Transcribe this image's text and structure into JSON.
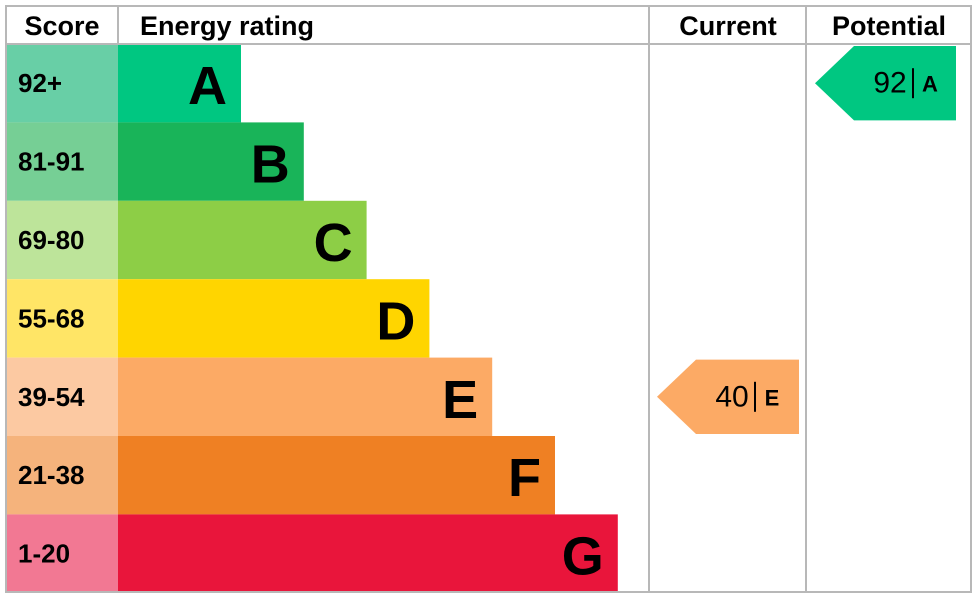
{
  "header": {
    "score": "Score",
    "rating": "Energy rating",
    "current": "Current",
    "potential": "Potential"
  },
  "bands": [
    {
      "score": "92+",
      "letter": "A",
      "color": "#00c781",
      "light": "#68cfa6"
    },
    {
      "score": "81-91",
      "letter": "B",
      "color": "#19b459",
      "light": "#76cf95"
    },
    {
      "score": "69-80",
      "letter": "C",
      "color": "#8dce46",
      "light": "#bde49a"
    },
    {
      "score": "55-68",
      "letter": "D",
      "color": "#ffd500",
      "light": "#ffe566"
    },
    {
      "score": "39-54",
      "letter": "E",
      "color": "#fcaa65",
      "light": "#fcc9a2"
    },
    {
      "score": "21-38",
      "letter": "F",
      "color": "#ef8023",
      "light": "#f5b37c"
    },
    {
      "score": "1-20",
      "letter": "G",
      "color": "#e9153b",
      "light": "#f27893"
    }
  ],
  "current": {
    "value": 40,
    "letter": "E"
  },
  "potential": {
    "value": 92,
    "letter": "A"
  }
}
